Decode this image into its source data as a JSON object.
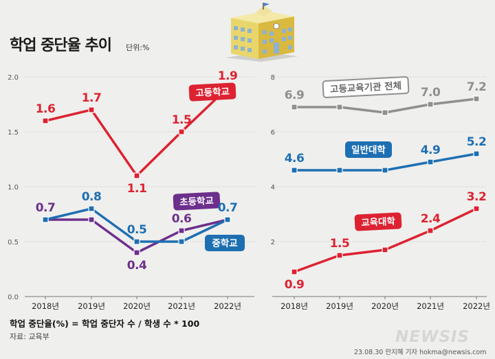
{
  "header": {
    "title": "학업 중단율 추이",
    "unit": "단위:%"
  },
  "footer": {
    "formula": "학업 중단율(%) = 학업 중단자 수 / 학생 수 * 100",
    "source": "자료: 교육부",
    "credit": "23.08.30 안지혜 기자 hokma@newsis.com",
    "logo": "NEWSIS"
  },
  "colors": {
    "red": "#dd2231",
    "purple": "#6c2f8c",
    "blue": "#1e6fb2",
    "gray": "#8f8f8f"
  },
  "chart_data": [
    {
      "type": "line",
      "x": [
        "2018년",
        "2019년",
        "2020년",
        "2021년",
        "2022년"
      ],
      "ylim": [
        0,
        2.0
      ],
      "yticks": [
        "0.0",
        "0.5",
        "1.0",
        "1.5",
        "2.0"
      ],
      "grid": true,
      "series": [
        {
          "name": "고등학교",
          "values": [
            1.6,
            1.7,
            1.1,
            1.5,
            1.9
          ],
          "labels": [
            "1.6",
            "1.7",
            "1.1",
            "1.5",
            "1.9"
          ],
          "color": "#dd2231"
        },
        {
          "name": "초등학교",
          "values": [
            0.7,
            0.7,
            0.4,
            0.6,
            0.7
          ],
          "labels": [
            "0.7",
            "",
            "0.4",
            "0.6",
            ""
          ],
          "color": "#6c2f8c"
        },
        {
          "name": "중학교",
          "values": [
            0.7,
            0.8,
            0.5,
            0.5,
            0.7
          ],
          "labels": [
            "",
            "0.8",
            "0.5",
            "",
            "0.7"
          ],
          "color": "#1e6fb2"
        }
      ]
    },
    {
      "type": "line",
      "x": [
        "2018년",
        "2019년",
        "2020년",
        "2021년",
        "2022년"
      ],
      "ylim": [
        0,
        8
      ],
      "yticks": [
        "2",
        "4",
        "6",
        "8"
      ],
      "grid": true,
      "series": [
        {
          "name": "고등교육기관 전체",
          "values": [
            6.9,
            6.9,
            6.7,
            7.0,
            7.2
          ],
          "labels": [
            "6.9",
            "",
            "",
            "7.0",
            "7.2"
          ],
          "color": "#8f8f8f"
        },
        {
          "name": "일반대학",
          "values": [
            4.6,
            4.6,
            4.6,
            4.9,
            5.2
          ],
          "labels": [
            "4.6",
            "",
            "",
            "4.9",
            "5.2"
          ],
          "color": "#1e6fb2"
        },
        {
          "name": "교육대학",
          "values": [
            0.9,
            1.5,
            1.7,
            2.4,
            3.2
          ],
          "labels": [
            "0.9",
            "1.5",
            "",
            "2.4",
            "3.2"
          ],
          "color": "#dd2231"
        }
      ]
    }
  ]
}
